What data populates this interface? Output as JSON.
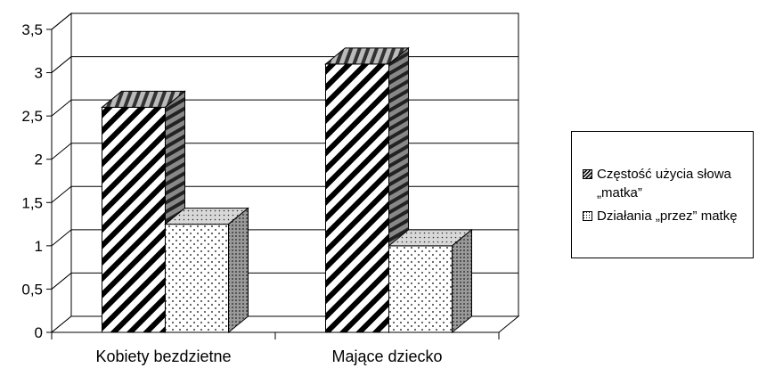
{
  "chart_data": {
    "type": "bar",
    "title": "",
    "xlabel": "",
    "ylabel": "",
    "categories": [
      "Kobiety bezdzietne",
      "Mające dziecko"
    ],
    "series": [
      {
        "name": "Częstość użycia słowa „matka”",
        "values": [
          2.6,
          3.1
        ],
        "pattern": "diagonal-stripes"
      },
      {
        "name": "Działania „przez” matkę",
        "values": [
          1.25,
          1.0
        ],
        "pattern": "dots"
      }
    ],
    "ylim": [
      0,
      3.5
    ],
    "y_ticks": [
      "0",
      "0,5",
      "1",
      "1,5",
      "2",
      "2,5",
      "3",
      "3,5"
    ],
    "grid": true,
    "legend_position": "right",
    "style": "3d-clustered-column"
  },
  "legend": {
    "items": [
      {
        "label": "Częstość użycia słowa „matka”"
      },
      {
        "label": "Działania „przez” matkę"
      }
    ]
  }
}
